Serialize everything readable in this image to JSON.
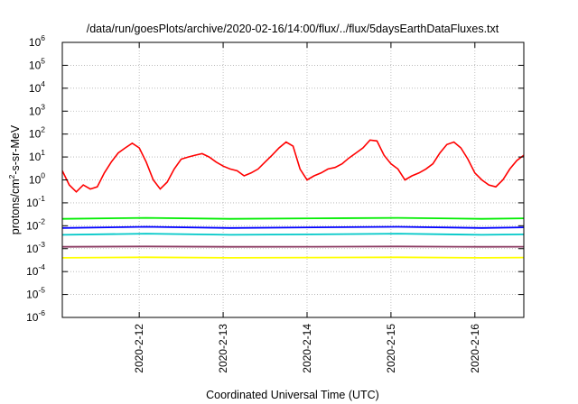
{
  "chart_data": {
    "type": "line",
    "title": "/data/run/goesPlots/archive/2020-02-16/14:00/flux/../flux/5daysEarthDataFluxes.txt",
    "xlabel": "Coordinated Universal Time (UTC)",
    "ylabel": {
      "pre": "protons/cm",
      "sup": "2",
      "post": "-s-sr-MeV"
    },
    "y_scale": "log",
    "ylim": [
      1e-06,
      1000000.0
    ],
    "y_ticks": [
      {
        "base": "10",
        "exp": "-6"
      },
      {
        "base": "10",
        "exp": "-5"
      },
      {
        "base": "10",
        "exp": "-4"
      },
      {
        "base": "10",
        "exp": "-3"
      },
      {
        "base": "10",
        "exp": "-2"
      },
      {
        "base": "10",
        "exp": "-1"
      },
      {
        "base": "10",
        "exp": "0"
      },
      {
        "base": "10",
        "exp": "1"
      },
      {
        "base": "10",
        "exp": "2"
      },
      {
        "base": "10",
        "exp": "3"
      },
      {
        "base": "10",
        "exp": "4"
      },
      {
        "base": "10",
        "exp": "5"
      },
      {
        "base": "10",
        "exp": "6"
      }
    ],
    "x_range": [
      "2020-02-11 02:00",
      "2020-02-16 14:00"
    ],
    "x_ticks": [
      "2020-2-12",
      "2020-2-13",
      "2020-2-14",
      "2020-2-15",
      "2020-2-16"
    ],
    "grid": true,
    "series": [
      {
        "color": "#ff0000",
        "x": [
          "2020-02-11 02:00",
          "2020-02-11 04:00",
          "2020-02-11 06:00",
          "2020-02-11 08:00",
          "2020-02-11 10:00",
          "2020-02-11 12:00",
          "2020-02-11 14:00",
          "2020-02-11 16:00",
          "2020-02-11 18:00",
          "2020-02-11 20:00",
          "2020-02-11 22:00",
          "2020-02-12 00:00",
          "2020-02-12 02:00",
          "2020-02-12 04:00",
          "2020-02-12 06:00",
          "2020-02-12 08:00",
          "2020-02-12 10:00",
          "2020-02-12 12:00",
          "2020-02-12 14:00",
          "2020-02-12 16:00",
          "2020-02-12 18:00",
          "2020-02-12 20:00",
          "2020-02-12 22:00",
          "2020-02-13 00:00",
          "2020-02-13 02:00",
          "2020-02-13 04:00",
          "2020-02-13 06:00",
          "2020-02-13 08:00",
          "2020-02-13 10:00",
          "2020-02-13 12:00",
          "2020-02-13 14:00",
          "2020-02-13 16:00",
          "2020-02-13 18:00",
          "2020-02-13 20:00",
          "2020-02-13 22:00",
          "2020-02-14 00:00",
          "2020-02-14 02:00",
          "2020-02-14 04:00",
          "2020-02-14 06:00",
          "2020-02-14 08:00",
          "2020-02-14 10:00",
          "2020-02-14 12:00",
          "2020-02-14 14:00",
          "2020-02-14 16:00",
          "2020-02-14 18:00",
          "2020-02-14 20:00",
          "2020-02-14 22:00",
          "2020-02-15 00:00",
          "2020-02-15 02:00",
          "2020-02-15 04:00",
          "2020-02-15 06:00",
          "2020-02-15 08:00",
          "2020-02-15 10:00",
          "2020-02-15 12:00",
          "2020-02-15 14:00",
          "2020-02-15 16:00",
          "2020-02-15 18:00",
          "2020-02-15 20:00",
          "2020-02-15 22:00",
          "2020-02-16 00:00",
          "2020-02-16 02:00",
          "2020-02-16 04:00",
          "2020-02-16 06:00",
          "2020-02-16 08:00",
          "2020-02-16 10:00",
          "2020-02-16 12:00",
          "2020-02-16 14:00"
        ],
        "y": [
          2.5,
          0.6,
          0.3,
          0.6,
          0.4,
          0.5,
          2,
          6,
          15,
          25,
          40,
          25,
          6,
          1,
          0.4,
          0.8,
          3,
          8,
          10,
          12,
          14,
          10,
          6,
          4,
          3,
          2.5,
          1.5,
          2,
          3,
          6,
          12,
          25,
          45,
          30,
          3,
          1,
          1.5,
          2,
          3,
          3.5,
          5,
          9,
          15,
          25,
          55,
          50,
          12,
          5,
          3,
          1,
          1.5,
          2,
          3,
          5,
          15,
          35,
          45,
          25,
          8,
          2,
          1,
          0.6,
          0.5,
          1,
          3,
          7,
          12
        ]
      },
      {
        "color": "#00ee00",
        "x": [
          "2020-02-11 02:00",
          "2020-02-12 02:00",
          "2020-02-13 02:00",
          "2020-02-14 02:00",
          "2020-02-15 02:00",
          "2020-02-16 02:00",
          "2020-02-16 14:00"
        ],
        "y": [
          0.02,
          0.022,
          0.02,
          0.021,
          0.022,
          0.02,
          0.021
        ]
      },
      {
        "color": "#00c8c8",
        "x": [
          "2020-02-11 02:00",
          "2020-02-12 02:00",
          "2020-02-13 02:00",
          "2020-02-14 02:00",
          "2020-02-15 02:00",
          "2020-02-16 02:00",
          "2020-02-16 14:00"
        ],
        "y": [
          0.004,
          0.0045,
          0.004,
          0.0042,
          0.0045,
          0.004,
          0.0042
        ]
      },
      {
        "color": "#0000ff",
        "x": [
          "2020-02-11 02:00",
          "2020-02-12 02:00",
          "2020-02-13 02:00",
          "2020-02-14 02:00",
          "2020-02-15 02:00",
          "2020-02-16 02:00",
          "2020-02-16 14:00"
        ],
        "y": [
          0.008,
          0.009,
          0.008,
          0.0085,
          0.009,
          0.008,
          0.0085
        ]
      },
      {
        "color": "#ffff00",
        "x": [
          "2020-02-11 02:00",
          "2020-02-12 02:00",
          "2020-02-13 02:00",
          "2020-02-14 02:00",
          "2020-02-15 02:00",
          "2020-02-16 02:00",
          "2020-02-16 14:00"
        ],
        "y": [
          0.0004,
          0.00042,
          0.0004,
          0.00041,
          0.00042,
          0.0004,
          0.00041
        ]
      },
      {
        "color": "#8b3a62",
        "x": [
          "2020-02-11 02:00",
          "2020-02-12 02:00",
          "2020-02-13 02:00",
          "2020-02-14 02:00",
          "2020-02-15 02:00",
          "2020-02-16 02:00",
          "2020-02-16 14:00"
        ],
        "y": [
          0.0012,
          0.00125,
          0.0012,
          0.00122,
          0.00125,
          0.0012,
          0.00122
        ]
      }
    ]
  }
}
